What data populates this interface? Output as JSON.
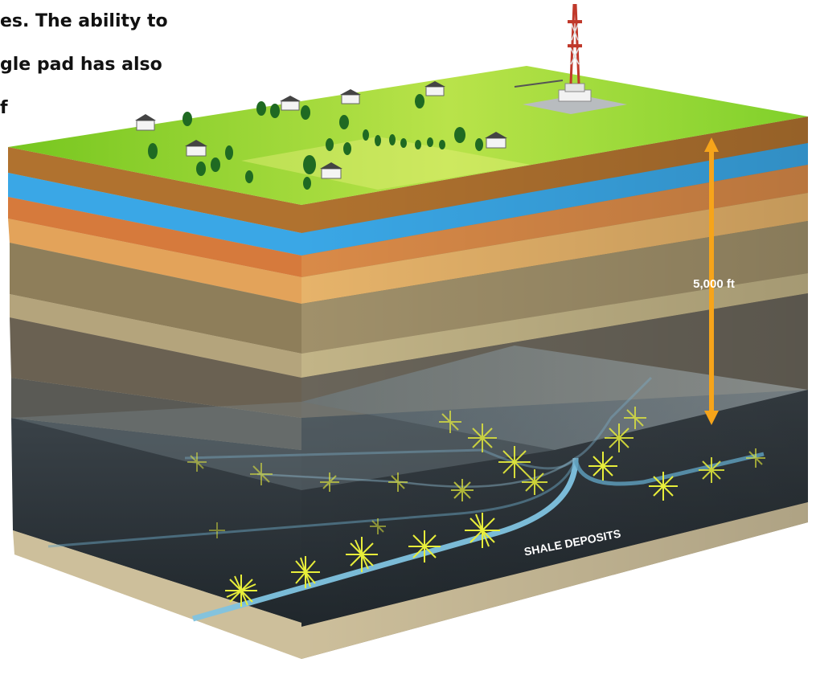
{
  "caption": {
    "lines": [
      "es. The ability to",
      "gle pad has also",
      "f"
    ]
  },
  "depth_label": "5,000 ft",
  "deposit_label": "SHALE DEPOSITS",
  "colors": {
    "grass": "#8cd22a",
    "aquifer": "#3aa7e6",
    "depth_arrow": "#f6a41a",
    "shale": "#2c343b",
    "well": "#8fd0ea",
    "fracture": "#e8ee3a"
  },
  "icons": [
    "drilling-rig-icon",
    "house-icon",
    "tree-icon",
    "fracture-star-icon"
  ]
}
